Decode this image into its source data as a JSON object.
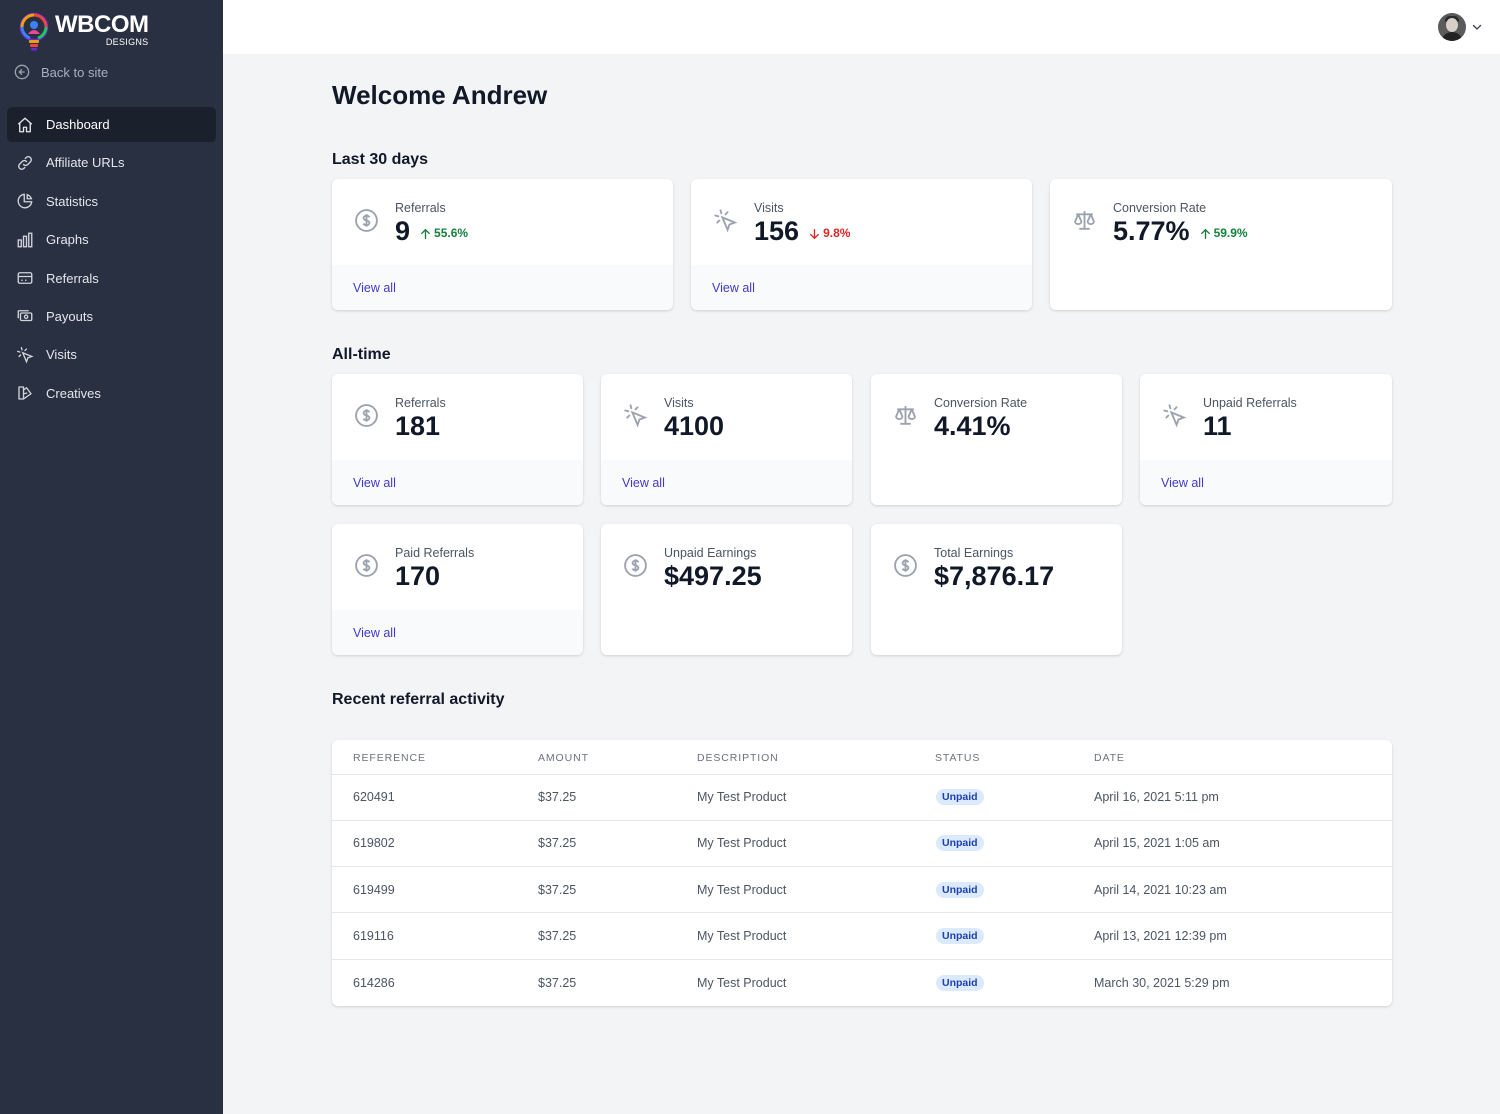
{
  "brand": {
    "name": "WBCOM",
    "tagline": "DESIGNS"
  },
  "sidebar": {
    "back_label": "Back to site",
    "items": [
      {
        "label": "Dashboard",
        "icon": "home-icon",
        "active": true
      },
      {
        "label": "Affiliate URLs",
        "icon": "link-icon"
      },
      {
        "label": "Statistics",
        "icon": "pie-chart-icon"
      },
      {
        "label": "Graphs",
        "icon": "bar-chart-icon"
      },
      {
        "label": "Referrals",
        "icon": "credit-card-icon"
      },
      {
        "label": "Payouts",
        "icon": "cash-icon"
      },
      {
        "label": "Visits",
        "icon": "cursor-click-icon"
      },
      {
        "label": "Creatives",
        "icon": "template-icon"
      }
    ]
  },
  "header": {
    "user_avatar": "avatar",
    "menu_icon": "chevron-down-icon"
  },
  "main": {
    "welcome": "Welcome Andrew",
    "last30": {
      "title": "Last 30 days",
      "cards": [
        {
          "label": "Referrals",
          "value": "9",
          "delta": "55.6%",
          "trend": "up",
          "link": "View all",
          "icon": "currency-dollar-icon"
        },
        {
          "label": "Visits",
          "value": "156",
          "delta": "9.8%",
          "trend": "down",
          "link": "View all",
          "icon": "cursor-click-icon"
        },
        {
          "label": "Conversion Rate",
          "value": "5.77%",
          "delta": "59.9%",
          "trend": "up",
          "icon": "scale-icon"
        }
      ]
    },
    "alltime": {
      "title": "All-time",
      "cards": [
        {
          "label": "Referrals",
          "value": "181",
          "link": "View all",
          "icon": "currency-dollar-icon"
        },
        {
          "label": "Visits",
          "value": "4100",
          "link": "View all",
          "icon": "cursor-click-icon"
        },
        {
          "label": "Conversion Rate",
          "value": "4.41%",
          "icon": "scale-icon"
        },
        {
          "label": "Unpaid Referrals",
          "value": "11",
          "link": "View all",
          "icon": "cursor-click-icon"
        },
        {
          "label": "Paid Referrals",
          "value": "170",
          "link": "View all",
          "icon": "currency-dollar-icon"
        },
        {
          "label": "Unpaid Earnings",
          "value": "$497.25",
          "icon": "currency-dollar-icon"
        },
        {
          "label": "Total Earnings",
          "value": "$7,876.17",
          "icon": "currency-dollar-icon"
        }
      ]
    },
    "recent": {
      "title": "Recent referral activity",
      "columns": [
        "REFERENCE",
        "AMOUNT",
        "DESCRIPTION",
        "STATUS",
        "DATE"
      ],
      "rows": [
        {
          "reference": "620491",
          "amount": "$37.25",
          "description": "My Test Product",
          "status": "Unpaid",
          "date": "April 16, 2021 5:11 pm"
        },
        {
          "reference": "619802",
          "amount": "$37.25",
          "description": "My Test Product",
          "status": "Unpaid",
          "date": "April 15, 2021 1:05 am"
        },
        {
          "reference": "619499",
          "amount": "$37.25",
          "description": "My Test Product",
          "status": "Unpaid",
          "date": "April 14, 2021 10:23 am"
        },
        {
          "reference": "619116",
          "amount": "$37.25",
          "description": "My Test Product",
          "status": "Unpaid",
          "date": "April 13, 2021 12:39 pm"
        },
        {
          "reference": "614286",
          "amount": "$37.25",
          "description": "My Test Product",
          "status": "Unpaid",
          "date": "March 30, 2021 5:29 pm"
        }
      ]
    }
  },
  "colors": {
    "sidebar": "#283041",
    "sidebar_active": "#1a202c",
    "link": "#4338ca",
    "up": "#15803d",
    "down": "#dc2626",
    "badge_bg": "#dbeafe",
    "badge_text": "#1e40af"
  }
}
